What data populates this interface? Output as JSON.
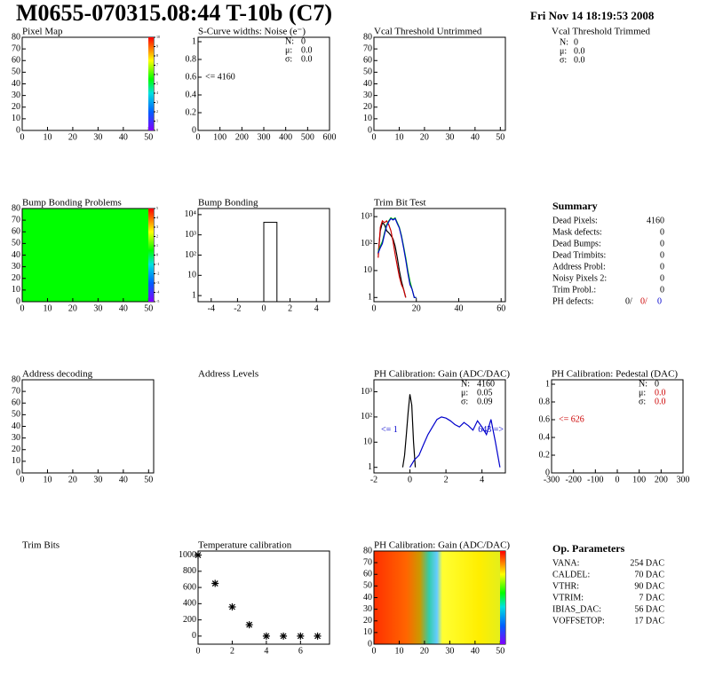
{
  "header": {
    "title": "M0655-070315.08:44 T-10b (C7)",
    "date": "Fri Nov 14 18:19:53 2008"
  },
  "panels": [
    {
      "kind": "hist2d",
      "title": "Pixel Map",
      "xlim": [
        0,
        52
      ],
      "ylim": [
        0,
        80
      ],
      "xticks": [
        0,
        10,
        20,
        30,
        40,
        50
      ],
      "yticks": [
        0,
        10,
        20,
        30,
        40,
        50,
        60,
        70,
        80
      ],
      "zticks": [
        0,
        1,
        2,
        3,
        4,
        5,
        6,
        7,
        8,
        9,
        10
      ],
      "zlim": [
        0,
        10
      ],
      "palette": "rainbow"
    },
    {
      "kind": "hist1d",
      "title": "S-Curve widths: Noise (e⁻)",
      "xlim": [
        0,
        600
      ],
      "ylim": [
        0,
        1.05
      ],
      "xticks": [
        0,
        100,
        200,
        300,
        400,
        500,
        600
      ],
      "yticks": [
        0,
        0.2,
        0.4,
        0.6,
        0.8,
        1
      ],
      "stats": [
        {
          "label": "N:",
          "value": "0"
        },
        {
          "label": "μ:",
          "value": "0.0"
        },
        {
          "label": "σ:",
          "value": "0.0"
        }
      ],
      "annotations": [
        {
          "text": "<= 4160",
          "color": "#000000",
          "at": [
            0.6
          ]
        }
      ]
    },
    {
      "kind": "hist2d",
      "title": "Vcal Threshold Untrimmed",
      "xlim": [
        0,
        52
      ],
      "ylim": [
        0,
        80
      ],
      "xticks": [
        0,
        10,
        20,
        30,
        40,
        50
      ],
      "yticks": [
        0,
        10,
        20,
        30,
        40,
        50,
        60,
        70,
        80
      ]
    },
    {
      "kind": "statsonly",
      "title": "Vcal Threshold Trimmed",
      "stats": [
        {
          "label": "N:",
          "value": "0"
        },
        {
          "label": "μ:",
          "value": "0.0"
        },
        {
          "label": "σ:",
          "value": "0.0"
        }
      ]
    },
    {
      "kind": "hist2d",
      "title": "Bump Bonding Problems",
      "xlim": [
        0,
        52
      ],
      "ylim": [
        0,
        80
      ],
      "xticks": [
        0,
        10,
        20,
        30,
        40,
        50
      ],
      "yticks": [
        0,
        10,
        20,
        30,
        40,
        50,
        60,
        70,
        80
      ],
      "zticks": [
        -5,
        -4,
        -3,
        -2,
        -1,
        0,
        1,
        2,
        3,
        4,
        5
      ],
      "zlim": [
        -5,
        5
      ],
      "palette": "rainbow",
      "fill": "#00ff00"
    },
    {
      "kind": "hist1d",
      "title": "Bump Bonding",
      "xlim": [
        -5,
        5
      ],
      "ylim": [
        0.5,
        20000
      ],
      "ylog": true,
      "xticks": [
        -4,
        -2,
        0,
        2,
        4
      ],
      "yticks": [
        1,
        10,
        {
          "value": 100,
          "label": "10²"
        },
        {
          "value": 1000,
          "label": "10³"
        },
        {
          "value": 10000,
          "label": "10⁴"
        }
      ],
      "bars": {
        "bins": [
          0,
          1
        ],
        "values": [
          4160
        ],
        "color": "#000000"
      }
    },
    {
      "kind": "hist1d",
      "title": "Trim Bit Test",
      "xlim": [
        0,
        62
      ],
      "ylim": [
        0.7,
        2000
      ],
      "ylog": true,
      "xticks": [
        0,
        20,
        40,
        60
      ],
      "yticks": [
        1,
        10,
        {
          "value": 100,
          "label": "10²"
        },
        {
          "value": 1000,
          "label": "10³"
        }
      ],
      "series": [
        {
          "color": "#000000",
          "x": [
            1,
            2,
            3,
            4,
            5,
            6,
            7,
            8,
            9,
            10,
            11,
            12,
            13,
            14,
            15,
            16,
            17,
            18,
            19,
            20,
            21,
            22
          ],
          "values": [
            null,
            40,
            300,
            600,
            500,
            300,
            250,
            200,
            150,
            80,
            30,
            10,
            4,
            2,
            1,
            null,
            null,
            null,
            null,
            null,
            null,
            null
          ]
        },
        {
          "color": "#cc0000",
          "x": [
            1,
            2,
            3,
            4,
            5,
            6,
            7,
            8,
            9,
            10,
            11,
            12,
            13,
            14,
            15,
            16,
            17,
            18,
            19,
            20,
            21,
            22
          ],
          "values": [
            null,
            30,
            400,
            700,
            600,
            700,
            500,
            300,
            120,
            40,
            15,
            6,
            3,
            2,
            1,
            null,
            null,
            null,
            null,
            null,
            null,
            null
          ]
        },
        {
          "color": "#00cc00",
          "x": [
            1,
            2,
            3,
            4,
            5,
            6,
            7,
            8,
            9,
            10,
            11,
            12,
            13,
            14,
            15,
            16,
            17,
            18,
            19,
            20,
            21,
            22
          ],
          "values": [
            null,
            50,
            80,
            120,
            250,
            500,
            700,
            900,
            800,
            900,
            600,
            400,
            200,
            80,
            30,
            10,
            4,
            2,
            1,
            1,
            null,
            null
          ]
        },
        {
          "color": "#0000cc",
          "x": [
            1,
            2,
            3,
            4,
            5,
            6,
            7,
            8,
            9,
            10,
            11,
            12,
            13,
            14,
            15,
            16,
            17,
            18,
            19,
            20,
            21,
            22
          ],
          "values": [
            null,
            45,
            70,
            100,
            220,
            450,
            650,
            850,
            750,
            850,
            550,
            380,
            180,
            70,
            25,
            8,
            3,
            2,
            1,
            1,
            null,
            null
          ]
        }
      ]
    },
    {
      "kind": "summary",
      "heading": "Summary",
      "rows": [
        {
          "label": "Dead Pixels:",
          "value": "4160"
        },
        {
          "label": "Mask defects:",
          "value": "0"
        },
        {
          "label": "Dead Bumps:",
          "value": "0"
        },
        {
          "label": "Dead Trimbits:",
          "value": "0"
        },
        {
          "label": "Address Probl:",
          "value": "0"
        },
        {
          "label": "Noisy Pixels 2:",
          "value": "0"
        },
        {
          "label": "Trim Probl.:",
          "value": "0"
        }
      ],
      "last": {
        "label": "PH defects:",
        "parts": [
          {
            "text": "0/",
            "color": "#000000"
          },
          {
            "text": "0/",
            "color": "#cc0000"
          },
          {
            "text": "0",
            "color": "#0000cc"
          }
        ]
      }
    },
    {
      "kind": "hist2d",
      "title": "Address decoding",
      "xlim": [
        0,
        52
      ],
      "ylim": [
        0,
        80
      ],
      "xticks": [
        0,
        10,
        20,
        30,
        40,
        50
      ],
      "yticks": [
        0,
        10,
        20,
        30,
        40,
        50,
        60,
        70,
        80
      ]
    },
    {
      "kind": "titleonly",
      "title": "Address Levels"
    },
    {
      "kind": "hist1d",
      "title": "PH Calibration: Gain (ADC/DAC)",
      "xlim": [
        -2,
        5.3
      ],
      "ylim": [
        0.6,
        3000
      ],
      "ylog": true,
      "xticks": [
        -2,
        0,
        2,
        4
      ],
      "yticks": [
        1,
        10,
        {
          "value": 100,
          "label": "10²"
        },
        {
          "value": 1000,
          "label": "10³"
        }
      ],
      "stats": [
        {
          "label": "N:",
          "value": "4160"
        },
        {
          "label": "μ:",
          "value": "0.05"
        },
        {
          "label": "σ:",
          "value": "0.09"
        }
      ],
      "annotations": [
        {
          "text": "<= 1",
          "color": "#0000cc",
          "at": [
            30
          ]
        },
        {
          "text": "643 =>",
          "color": "#0000cc",
          "at": [
            30
          ],
          "right": true
        }
      ],
      "series": [
        {
          "color": "#000000",
          "x": [
            -0.4,
            -0.3,
            -0.2,
            -0.1,
            0,
            0.1,
            0.2,
            0.3
          ],
          "values": [
            1,
            3,
            20,
            150,
            800,
            300,
            10,
            1
          ]
        },
        {
          "color": "#0000cc",
          "x": [
            0,
            0.25,
            0.5,
            0.75,
            1,
            1.25,
            1.5,
            1.75,
            2,
            2.25,
            2.5,
            2.75,
            3,
            3.25,
            3.5,
            3.75,
            4,
            4.25,
            4.5,
            4.75,
            5
          ],
          "values": [
            1,
            2,
            3,
            8,
            20,
            40,
            80,
            100,
            90,
            70,
            50,
            40,
            60,
            45,
            30,
            70,
            40,
            20,
            80,
            10,
            1
          ]
        }
      ]
    },
    {
      "kind": "hist1d",
      "title": "PH Calibration: Pedestal (DAC)",
      "xlim": [
        -300,
        300
      ],
      "ylim": [
        0,
        1.05
      ],
      "xticks": [
        -300,
        -200,
        -100,
        0,
        100,
        200,
        300
      ],
      "yticks": [
        0,
        0.2,
        0.4,
        0.6,
        0.8,
        1
      ],
      "stats": [
        {
          "label": "N:",
          "value": "0"
        },
        {
          "label": "μ:",
          "value": "0.0",
          "color": "#cc0000"
        },
        {
          "label": "σ:",
          "value": "0.0",
          "color": "#cc0000"
        }
      ],
      "annotations": [
        {
          "text": "<= 626",
          "color": "#cc0000",
          "at": [
            0.6
          ]
        }
      ]
    },
    {
      "kind": "titleonly",
      "title": "Trim Bits"
    },
    {
      "kind": "graph",
      "title": "Temperature calibration",
      "xlim": [
        0,
        7.7
      ],
      "ylim": [
        -100,
        1050
      ],
      "xticks": [
        0,
        2,
        4,
        6
      ],
      "yticks": [
        0,
        200,
        400,
        600,
        800,
        1000
      ],
      "points": {
        "x": [
          0,
          1,
          2,
          3,
          4,
          5,
          6,
          7
        ],
        "values": [
          1000,
          650,
          360,
          140,
          0,
          0,
          0,
          0
        ]
      }
    },
    {
      "kind": "hist2d",
      "title": "PH Calibration: Gain (ADC/DAC)",
      "xlim": [
        0,
        52
      ],
      "ylim": [
        0,
        80
      ],
      "xticks": [
        0,
        10,
        20,
        30,
        40,
        50
      ],
      "yticks": [
        0,
        10,
        20,
        30,
        40,
        50,
        60,
        70,
        80
      ],
      "palette": "rainbow",
      "fill": "url(#heat)"
    },
    {
      "kind": "summary",
      "heading": "Op. Parameters",
      "rows": [
        {
          "label": "VANA:",
          "value": "254 DAC"
        },
        {
          "label": "CALDEL:",
          "value": "70 DAC"
        },
        {
          "label": "VTHR:",
          "value": "90 DAC"
        },
        {
          "label": "VTRIM:",
          "value": "7 DAC"
        },
        {
          "label": "IBIAS_DAC:",
          "value": "56 DAC"
        },
        {
          "label": "VOFFSETOP:",
          "value": "17 DAC"
        }
      ]
    }
  ]
}
